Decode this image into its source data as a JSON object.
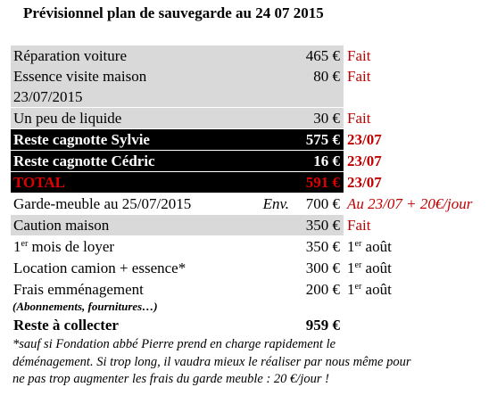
{
  "title": "Prévisionnel plan de sauvegarde au 24 07 2015",
  "rows": [
    {
      "label": "Réparation voiture",
      "amount": "465 €",
      "status": "Fait"
    },
    {
      "label": "Essence visite maison",
      "label2": "23/07/2015",
      "amount": "80 €",
      "status": "Fait"
    },
    {
      "label": "Un peu de liquide",
      "amount": "30 €",
      "status": "Fait"
    },
    {
      "label": "Reste cagnotte Sylvie",
      "amount": "575 €",
      "status": "23/07"
    },
    {
      "label": "Reste cagnotte Cédric",
      "amount": "16 €",
      "status": "23/07"
    },
    {
      "label": "TOTAL",
      "amount": "591 €",
      "status": "23/07"
    },
    {
      "label": "Garde-meuble au 25/07/2015",
      "prefix": "Env.",
      "amount": "700 €",
      "status": "Au 23/07 + 20€/jour"
    },
    {
      "label": "Caution maison",
      "amount": "350 €",
      "status": "Fait"
    },
    {
      "label_sup": "er",
      "label_after": " mois de loyer",
      "label_num": "1",
      "amount": "350 €",
      "status_num": "1",
      "status_sup": "er",
      "status_after": " août"
    },
    {
      "label": "Location camion + essence*",
      "amount": "300 €",
      "status_num": "1",
      "status_sup": "er",
      "status_after": " août"
    },
    {
      "label": "Frais emménagement",
      "sub": "(Abonnements, fournitures…)",
      "amount": "200 €",
      "status_num": "1",
      "status_sup": "er",
      "status_after": " août"
    },
    {
      "label": "Reste à collecter",
      "amount": "959 €"
    }
  ],
  "note": "*sauf si Fondation abbé Pierre prend en charge rapidement le déménagement. Si trop long, il vaudra mieux le réaliser par nous même pour ne pas trop augmenter les frais du garde meuble : 20 €/jour !"
}
